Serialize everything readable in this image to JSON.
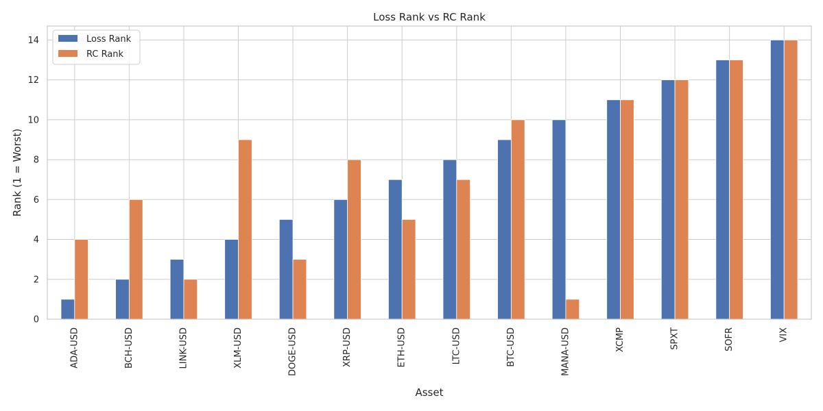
{
  "chart_data": {
    "type": "bar",
    "title": "Loss Rank vs RC Rank",
    "xlabel": "Asset",
    "ylabel": "Rank (1 = Worst)",
    "ylim": [
      0,
      14.7
    ],
    "yticks": [
      0,
      2,
      4,
      6,
      8,
      10,
      12,
      14
    ],
    "grid": true,
    "legend_position": "top-left",
    "categories": [
      "ADA-USD",
      "BCH-USD",
      "LINK-USD",
      "XLM-USD",
      "DOGE-USD",
      "XRP-USD",
      "ETH-USD",
      "LTC-USD",
      "BTC-USD",
      "MANA-USD",
      "XCMP",
      "SPXT",
      "SOFR",
      "VIX"
    ],
    "series": [
      {
        "name": "Loss Rank",
        "color": "#4c72b0",
        "values": [
          1,
          2,
          3,
          4,
          5,
          6,
          7,
          8,
          9,
          10,
          11,
          12,
          13,
          14
        ]
      },
      {
        "name": "RC Rank",
        "color": "#dd8452",
        "values": [
          4,
          6,
          2,
          9,
          3,
          8,
          5,
          7,
          10,
          1,
          11,
          12,
          13,
          14
        ]
      }
    ]
  }
}
